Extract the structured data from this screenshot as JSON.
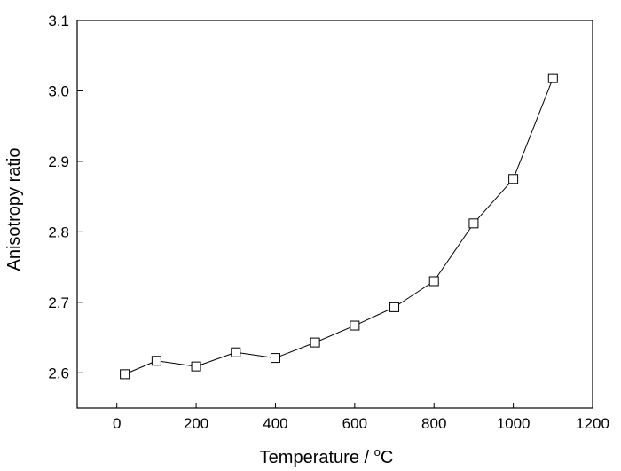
{
  "chart_data": {
    "type": "line",
    "x": [
      20,
      100,
      200,
      300,
      400,
      500,
      600,
      700,
      800,
      900,
      1000,
      1100
    ],
    "series": [
      {
        "values": [
          2.598,
          2.617,
          2.609,
          2.629,
          2.621,
          2.643,
          2.667,
          2.693,
          2.73,
          2.812,
          2.875,
          3.018
        ]
      }
    ],
    "xlabel": "Temperature / °C",
    "xlabel_parts": {
      "main": "Temperature / ",
      "sup": "o",
      "unit": "C"
    },
    "ylabel": "Anisotropy ratio",
    "xlim": [
      -100,
      1200
    ],
    "ylim": [
      2.55,
      3.1
    ],
    "xticks": [
      0,
      200,
      400,
      600,
      800,
      1000,
      1200
    ],
    "yticks": [
      2.6,
      2.7,
      2.8,
      2.9,
      3.0,
      3.1
    ],
    "ytick_labels": [
      "2.6",
      "2.7",
      "2.8",
      "2.9",
      "3.0",
      "3.1"
    ],
    "marker": "open-square",
    "grid": false
  }
}
